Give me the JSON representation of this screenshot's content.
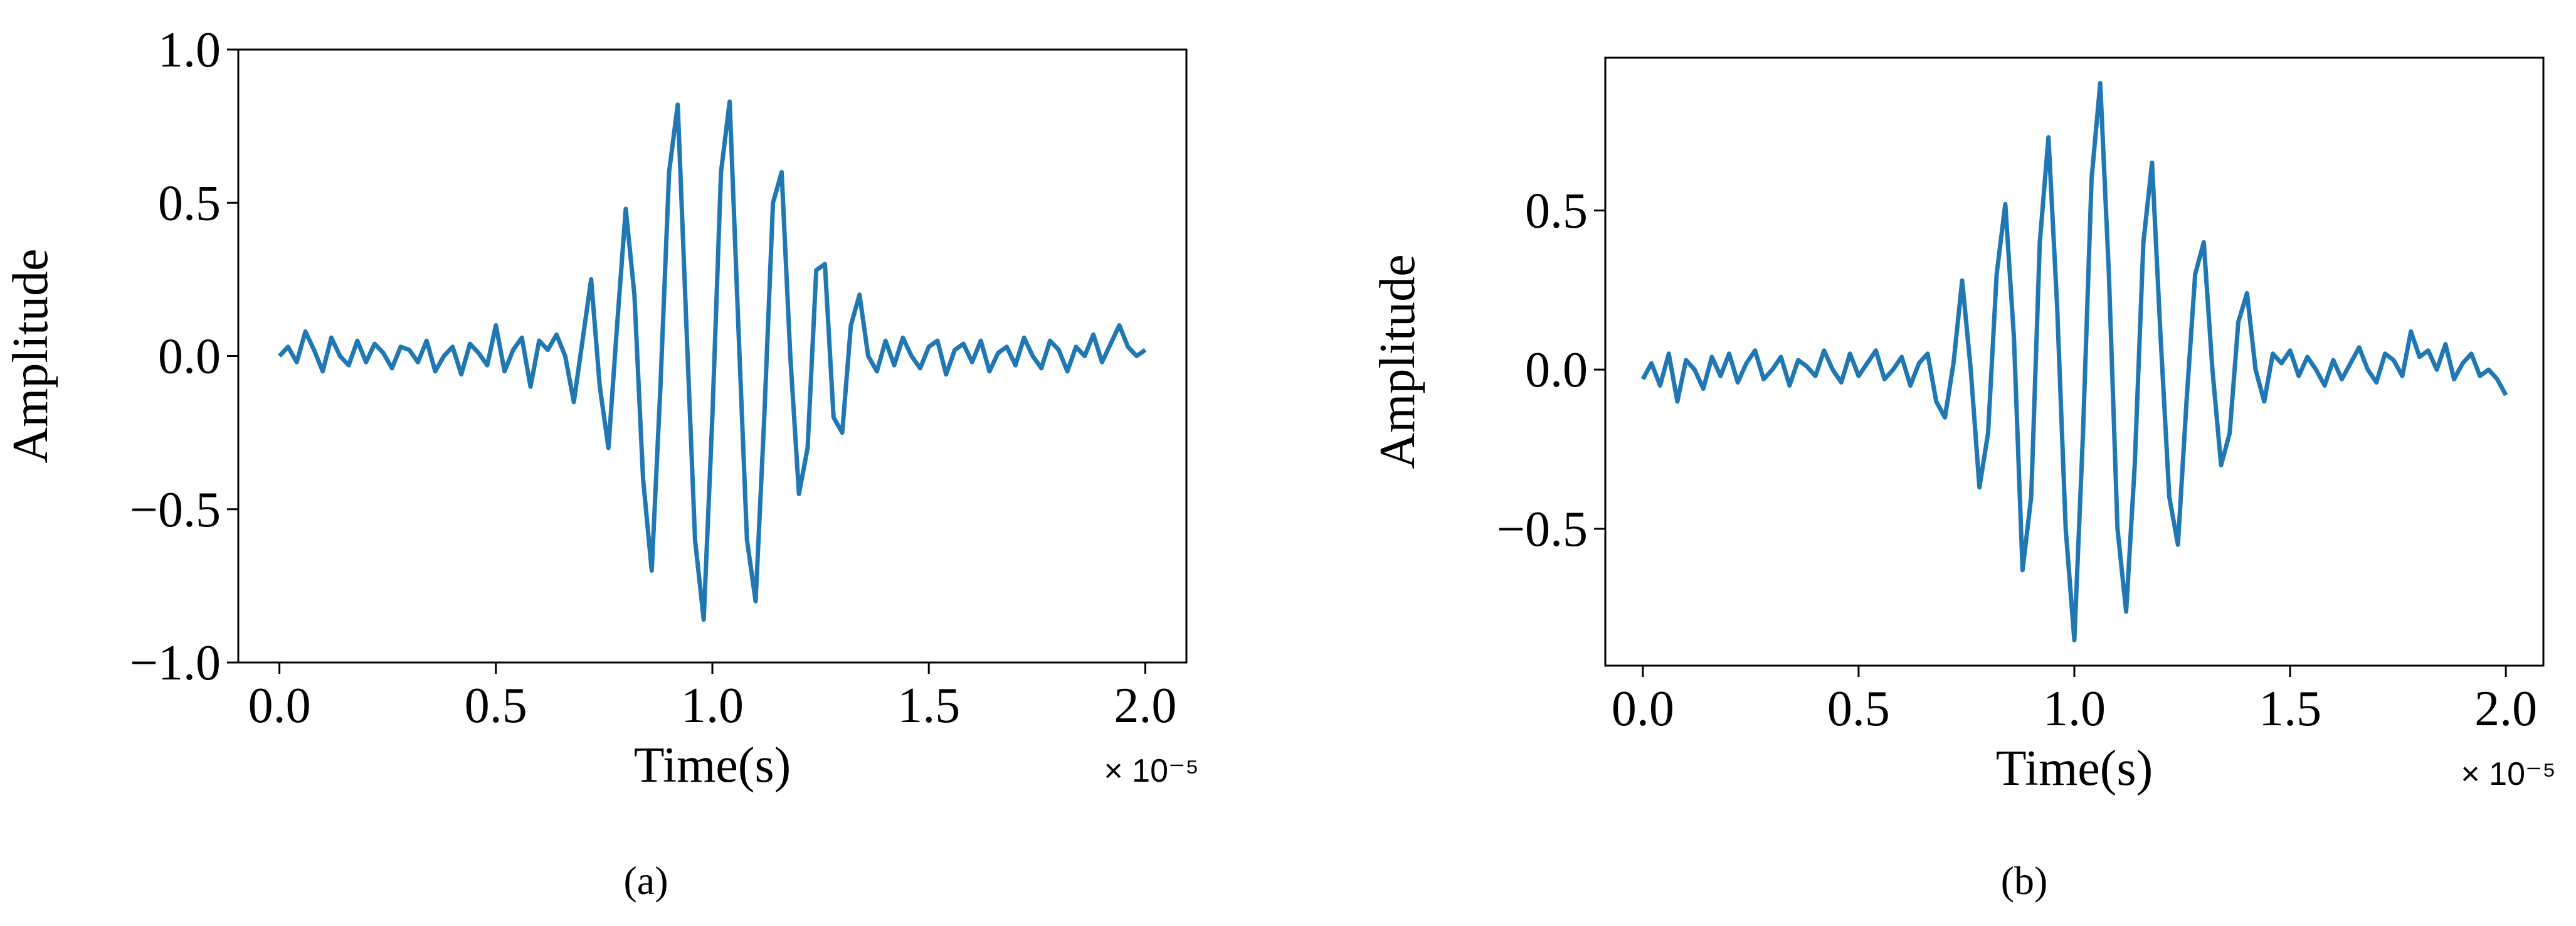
{
  "chart_data": [
    {
      "type": "line",
      "caption": "(a)",
      "x_label": "Time(s)",
      "y_label": "Amplitude",
      "x_offset": "× 10⁻⁵",
      "color": "#1f77b4",
      "xlim": [
        -0.095,
        2.095
      ],
      "ylim": [
        -1.0,
        1.0
      ],
      "xticks": [
        {
          "value": 0,
          "label": "0.0"
        },
        0.5,
        {
          "value": 1,
          "label": "1.0"
        },
        1.5,
        {
          "value": 2,
          "label": "2.0"
        }
      ],
      "yticks": [
        {
          "value": -1,
          "label": "−1.0"
        },
        {
          "value": -0.5,
          "label": "−0.5"
        },
        {
          "value": 0,
          "label": "0.0"
        },
        0.5,
        {
          "value": 1,
          "label": "1.0"
        }
      ],
      "x": [
        0,
        0.02,
        0.04,
        0.06,
        0.08,
        0.1,
        0.12,
        0.14,
        0.16,
        0.18,
        0.2,
        0.22,
        0.24,
        0.26,
        0.28,
        0.3,
        0.32,
        0.34,
        0.36,
        0.38,
        0.4,
        0.42,
        0.44,
        0.46,
        0.48,
        0.5,
        0.52,
        0.54,
        0.56,
        0.58,
        0.6,
        0.62,
        0.64,
        0.66,
        0.68,
        0.7,
        0.72,
        0.74,
        0.76,
        0.78,
        0.8,
        0.82,
        0.84,
        0.86,
        0.88,
        0.9,
        0.92,
        0.94,
        0.96,
        0.98,
        1,
        1.02,
        1.04,
        1.06,
        1.08,
        1.1,
        1.12,
        1.14,
        1.16,
        1.18,
        1.2,
        1.22,
        1.24,
        1.26,
        1.28,
        1.3,
        1.32,
        1.34,
        1.36,
        1.38,
        1.4,
        1.42,
        1.44,
        1.46,
        1.48,
        1.5,
        1.52,
        1.54,
        1.56,
        1.58,
        1.6,
        1.62,
        1.64,
        1.66,
        1.68,
        1.7,
        1.72,
        1.74,
        1.76,
        1.78,
        1.8,
        1.82,
        1.84,
        1.86,
        1.88,
        1.9,
        1.92,
        1.94,
        1.96,
        1.98,
        2
      ],
      "values": [
        0.0,
        0.03,
        -0.02,
        0.08,
        0.02,
        -0.05,
        0.06,
        0.0,
        -0.03,
        0.05,
        -0.02,
        0.04,
        0.01,
        -0.04,
        0.03,
        0.02,
        -0.02,
        0.05,
        -0.05,
        0.0,
        0.03,
        -0.06,
        0.04,
        0.01,
        -0.03,
        0.1,
        -0.05,
        0.02,
        0.06,
        -0.1,
        0.05,
        0.02,
        0.07,
        0.0,
        -0.15,
        0.05,
        0.25,
        -0.1,
        -0.3,
        0.1,
        0.48,
        0.2,
        -0.4,
        -0.7,
        -0.1,
        0.6,
        0.82,
        0.1,
        -0.6,
        -0.86,
        -0.2,
        0.6,
        0.83,
        0.1,
        -0.6,
        -0.8,
        -0.2,
        0.5,
        0.6,
        0.0,
        -0.45,
        -0.3,
        0.28,
        0.3,
        -0.2,
        -0.25,
        0.1,
        0.2,
        0.0,
        -0.05,
        0.05,
        -0.03,
        0.06,
        0.0,
        -0.04,
        0.03,
        0.05,
        -0.06,
        0.02,
        0.04,
        -0.02,
        0.05,
        -0.05,
        0.01,
        0.03,
        -0.03,
        0.06,
        0.0,
        -0.04,
        0.05,
        0.02,
        -0.05,
        0.03,
        0.0,
        0.07,
        -0.02,
        0.04,
        0.1,
        0.03,
        0.0,
        0.02
      ]
    },
    {
      "type": "line",
      "caption": "(b)",
      "x_label": "Time(s)",
      "y_label": "Amplitude",
      "x_offset": "× 10⁻⁵",
      "color": "#1f77b4",
      "xlim": [
        -0.087,
        2.087
      ],
      "ylim": [
        -0.93,
        0.98
      ],
      "xticks": [
        {
          "value": 0,
          "label": "0.0"
        },
        0.5,
        {
          "value": 1,
          "label": "1.0"
        },
        1.5,
        {
          "value": 2,
          "label": "2.0"
        }
      ],
      "yticks": [
        {
          "value": -0.5,
          "label": "−0.5"
        },
        {
          "value": 0,
          "label": "0.0"
        },
        0.5
      ],
      "x": [
        0,
        0.02,
        0.04,
        0.06,
        0.08,
        0.1,
        0.12,
        0.14,
        0.16,
        0.18,
        0.2,
        0.22,
        0.24,
        0.26,
        0.28,
        0.3,
        0.32,
        0.34,
        0.36,
        0.38,
        0.4,
        0.42,
        0.44,
        0.46,
        0.48,
        0.5,
        0.52,
        0.54,
        0.56,
        0.58,
        0.6,
        0.62,
        0.64,
        0.66,
        0.68,
        0.7,
        0.72,
        0.74,
        0.76,
        0.78,
        0.8,
        0.82,
        0.84,
        0.86,
        0.88,
        0.9,
        0.92,
        0.94,
        0.96,
        0.98,
        1,
        1.02,
        1.04,
        1.06,
        1.08,
        1.1,
        1.12,
        1.14,
        1.16,
        1.18,
        1.2,
        1.22,
        1.24,
        1.26,
        1.28,
        1.3,
        1.32,
        1.34,
        1.36,
        1.38,
        1.4,
        1.42,
        1.44,
        1.46,
        1.48,
        1.5,
        1.52,
        1.54,
        1.56,
        1.58,
        1.6,
        1.62,
        1.64,
        1.66,
        1.68,
        1.7,
        1.72,
        1.74,
        1.76,
        1.78,
        1.8,
        1.82,
        1.84,
        1.86,
        1.88,
        1.9,
        1.92,
        1.94,
        1.96,
        1.98,
        2
      ],
      "values": [
        -0.03,
        0.02,
        -0.05,
        0.05,
        -0.1,
        0.03,
        0.0,
        -0.06,
        0.04,
        -0.02,
        0.05,
        -0.04,
        0.02,
        0.06,
        -0.03,
        0.0,
        0.04,
        -0.05,
        0.03,
        0.01,
        -0.02,
        0.06,
        0.0,
        -0.04,
        0.05,
        -0.02,
        0.02,
        0.06,
        -0.03,
        0.0,
        0.04,
        -0.05,
        0.02,
        0.05,
        -0.1,
        -0.15,
        0.02,
        0.28,
        0.0,
        -0.37,
        -0.2,
        0.3,
        0.52,
        0.1,
        -0.63,
        -0.4,
        0.4,
        0.73,
        0.2,
        -0.5,
        -0.85,
        -0.2,
        0.6,
        0.9,
        0.3,
        -0.5,
        -0.76,
        -0.3,
        0.4,
        0.65,
        0.1,
        -0.4,
        -0.55,
        -0.1,
        0.3,
        0.4,
        0.0,
        -0.3,
        -0.2,
        0.15,
        0.24,
        0.0,
        -0.1,
        0.05,
        0.02,
        0.06,
        -0.02,
        0.04,
        0.0,
        -0.05,
        0.03,
        -0.03,
        0.02,
        0.07,
        0.0,
        -0.04,
        0.05,
        0.03,
        -0.02,
        0.12,
        0.04,
        0.06,
        0.0,
        0.08,
        -0.03,
        0.02,
        0.05,
        -0.02,
        0.0,
        -0.03,
        -0.08
      ]
    }
  ]
}
